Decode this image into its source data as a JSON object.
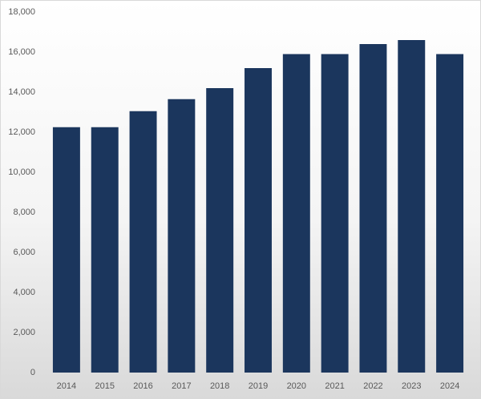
{
  "chart_data": {
    "type": "bar",
    "categories": [
      "2014",
      "2015",
      "2016",
      "2017",
      "2018",
      "2019",
      "2020",
      "2021",
      "2022",
      "2023",
      "2024"
    ],
    "values": [
      12250,
      12250,
      13050,
      13650,
      14200,
      15200,
      15900,
      15900,
      16400,
      16600,
      15900
    ],
    "color": "#1b365d",
    "ylim": [
      0,
      18000
    ],
    "yticks": [
      0,
      {
        "value": 2000,
        "label": "2,000"
      },
      {
        "value": 4000,
        "label": "4,000"
      },
      {
        "value": 6000,
        "label": "6,000"
      },
      {
        "value": 8000,
        "label": "8,000"
      },
      {
        "value": 10000,
        "label": "10,000"
      },
      {
        "value": 12000,
        "label": "12,000"
      },
      {
        "value": 14000,
        "label": "14,000"
      },
      {
        "value": 16000,
        "label": "16,000"
      },
      {
        "value": 18000,
        "label": "18,000"
      }
    ],
    "grid": false
  }
}
